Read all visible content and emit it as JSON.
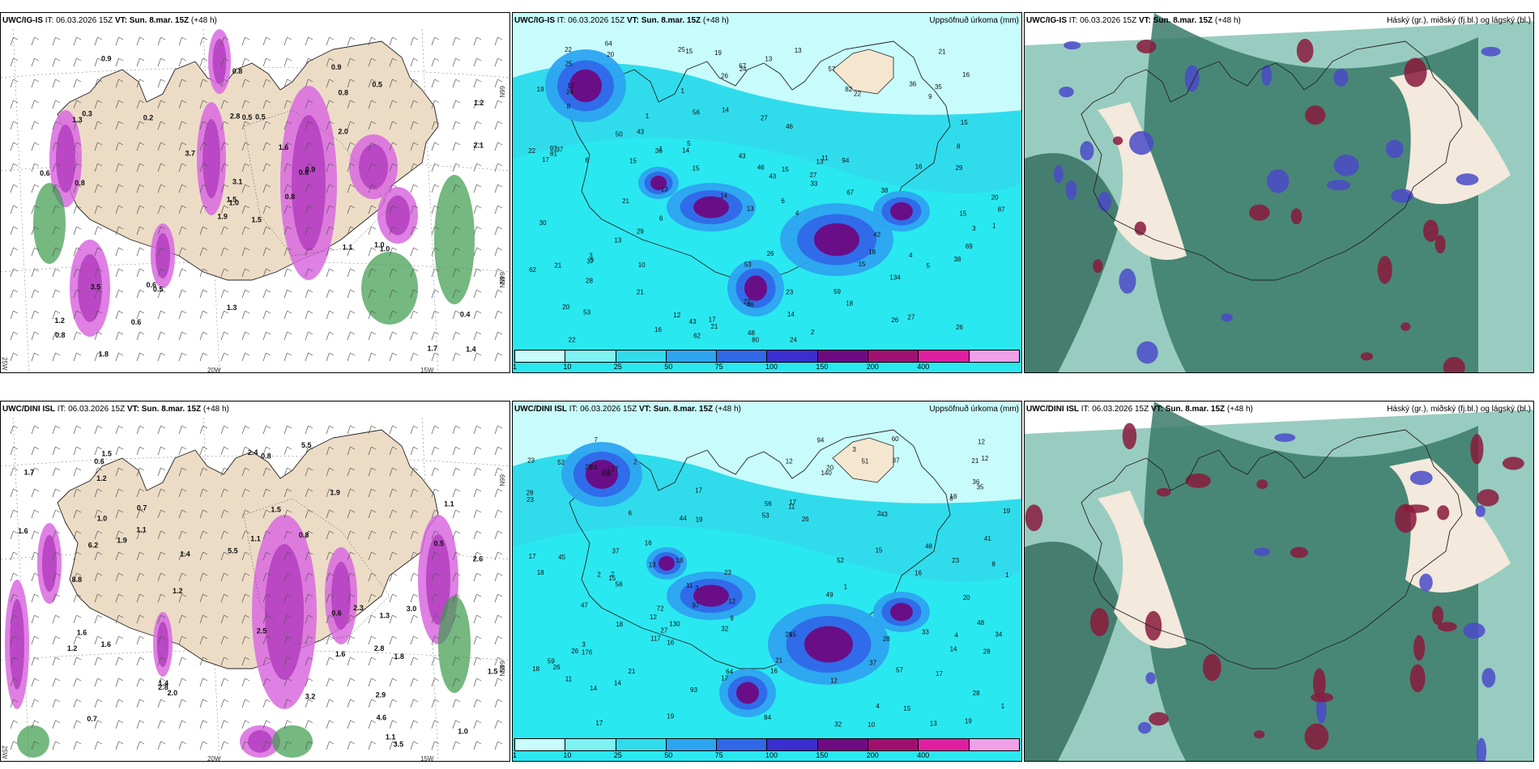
{
  "panels": [
    {
      "model": "UWC/IG-IS",
      "it_label": "IT:",
      "it": "06.03.2026 15Z",
      "vt_label": "VT:",
      "vt": "Sun. 8.mar. 15Z",
      "lead": "(+48 h)",
      "right_title": "",
      "type": "wind-precip",
      "axis_labels": [
        "66N",
        "65N",
        "64N",
        "20W",
        "15W",
        "25W"
      ],
      "values": [
        "1.5",
        "1.3",
        "1.0",
        "1.2",
        "0.6",
        "0.5",
        "0.9",
        "0.5",
        "0.8",
        "0.8",
        "0.9",
        "1.4",
        "0.8",
        "1.2",
        "1.9",
        "2.0",
        "1.8",
        "2.8",
        "1.6",
        "3.5",
        "3.7",
        "0.8",
        "0.6",
        "0.5",
        "0.9",
        "1.0",
        "0.3",
        "0.8",
        "0.6",
        "1.1",
        "2.1",
        "1.5",
        "1.3",
        "3.1",
        "0.2",
        "0.5",
        "0.6",
        "1.7",
        "0.4",
        "1.0"
      ]
    },
    {
      "model": "UWC/IG-IS",
      "it_label": "IT:",
      "it": "06.03.2026 15Z",
      "vt_label": "VT:",
      "vt": "Sun. 8.mar. 15Z",
      "lead": "(+48 h)",
      "right_title": "Uppsöfnuð úrkoma (mm)",
      "type": "precip-acc",
      "colorbar_labels": [
        "1",
        "10",
        "25",
        "50",
        "75",
        "100",
        "150",
        "200",
        "400"
      ],
      "colorbar_colors": [
        "#c8fbfb",
        "#7ff2f2",
        "#30dcec",
        "#2da4f0",
        "#3068e8",
        "#3a2ed0",
        "#6e0a82",
        "#a01070",
        "#e01ea0",
        "#f0a0e8"
      ],
      "values": [
        "13",
        "14",
        "15",
        "15",
        "16",
        "22",
        "27",
        "22",
        "46",
        "33",
        "28",
        "15",
        "19",
        "18",
        "18",
        "21",
        "20",
        "22",
        "23",
        "35",
        "13",
        "13",
        "37",
        "43",
        "36",
        "64",
        "57",
        "26",
        "46",
        "62",
        "53",
        "43",
        "42",
        "36",
        "20",
        "25",
        "50",
        "30",
        "43",
        "14",
        "15",
        "53",
        "67",
        "69",
        "48",
        "29",
        "26",
        "27",
        "24",
        "59",
        "67",
        "87",
        "94",
        "134",
        "43",
        "38",
        "81",
        "80",
        "82",
        "22",
        "21",
        "25",
        "20",
        "17",
        "13",
        "10",
        "12",
        "13",
        "9",
        "15",
        "15",
        "24",
        "27",
        "14",
        "15",
        "21",
        "13",
        "16",
        "14",
        "19",
        "37",
        "21",
        "46",
        "56",
        "38",
        "29",
        "26",
        "21",
        "16",
        "8",
        "5",
        "2",
        "1",
        "1",
        "3",
        "4",
        "6",
        "3",
        "1",
        "5",
        "4",
        "6",
        "5",
        "6",
        "11",
        "12",
        "17",
        "26",
        "22",
        "24",
        "8",
        "1",
        "93",
        "62"
      ]
    },
    {
      "model": "UWC/IG-IS",
      "it_label": "IT:",
      "it": "06.03.2026 15Z",
      "vt_label": "VT:",
      "vt": "Sun. 8.mar. 15Z",
      "lead": "(+48 h)",
      "right_title": "Háský (gr.), miðský (fj.bl.) og lágský (bl.)",
      "type": "clouds"
    },
    {
      "model": "UWC/DINI ISL",
      "it_label": "IT:",
      "it": "06.03.2026 15Z",
      "vt_label": "VT:",
      "vt": "Sun. 8.mar. 15Z",
      "lead": "(+48 h)",
      "right_title": "",
      "type": "wind-precip",
      "axis_labels": [
        "66N",
        "65N",
        "64N",
        "20W",
        "15W",
        "25W"
      ],
      "values": [
        "1.6",
        "1.7",
        "1.2",
        "1.3",
        "1.1",
        "1.1",
        "1.6",
        "1.4",
        "1.4",
        "1.1",
        "1.0",
        "1.6",
        "2.0",
        "1.5",
        "1.9",
        "2.3",
        "3.0",
        "2.8",
        "2.9",
        "2.8",
        "5.5",
        "3.5",
        "8.8",
        "5.5",
        "6.2",
        "0.7",
        "1.2",
        "1.0",
        "1.1",
        "1.2",
        "1.5",
        "0.6",
        "0.8",
        "0.8",
        "3.2",
        "2.6",
        "2.5",
        "0.7",
        "1.5",
        "2.4",
        "1.6",
        "1.9",
        "1.8",
        "0.5",
        "0.6",
        "4.6"
      ]
    },
    {
      "model": "UWC/DINI ISL",
      "it_label": "IT:",
      "it": "06.03.2026 15Z",
      "vt_label": "VT:",
      "vt": "Sun. 8.mar. 15Z",
      "lead": "(+48 h)",
      "right_title": "Uppsöfnuð úrkoma (mm)",
      "type": "precip-acc",
      "colorbar_labels": [
        "1",
        "10",
        "25",
        "50",
        "75",
        "100",
        "150",
        "200",
        "400"
      ],
      "colorbar_colors": [
        "#c8fbfb",
        "#7ff2f2",
        "#30dcec",
        "#2da4f0",
        "#3068e8",
        "#3a2ed0",
        "#6e0a82",
        "#a01070",
        "#e01ea0",
        "#f0a0e8"
      ],
      "values": [
        "15",
        "14",
        "10",
        "23",
        "32",
        "19",
        "26",
        "27",
        "21",
        "21",
        "24",
        "17",
        "16",
        "26",
        "26",
        "27",
        "33",
        "28",
        "20",
        "18",
        "20",
        "21",
        "19",
        "28",
        "37",
        "72",
        "23",
        "41",
        "32",
        "18",
        "17",
        "11",
        "45",
        "47",
        "52",
        "36",
        "58",
        "64",
        "57",
        "51",
        "43",
        "48",
        "34",
        "35",
        "60",
        "97",
        "93",
        "26",
        "138",
        "130",
        "37",
        "28",
        "14",
        "16",
        "12",
        "14",
        "16",
        "12",
        "15",
        "17",
        "9",
        "13",
        "15",
        "23",
        "28",
        "12",
        "13",
        "17",
        "18",
        "18",
        "19",
        "37",
        "44",
        "49",
        "53",
        "59",
        "56",
        "15",
        "17",
        "16",
        "12",
        "7",
        "6",
        "8",
        "2",
        "2",
        "1",
        "1",
        "3",
        "3",
        "4",
        "4",
        "3",
        "2",
        "8",
        "17",
        "11",
        "19",
        "17",
        "11",
        "2",
        "1",
        "18",
        "12",
        "12",
        "94",
        "140",
        "117",
        "176",
        "84",
        "23",
        "52",
        "28",
        "48"
      ]
    },
    {
      "model": "UWC/DINI ISL",
      "it_label": "IT:",
      "it": "06.03.2026 15Z",
      "vt_label": "VT:",
      "vt": "Sun. 8.mar. 15Z",
      "lead": "(+48 h)",
      "right_title": "Háský (gr.), miðský (fj.bl.) og lágský (bl.)",
      "type": "clouds"
    }
  ]
}
